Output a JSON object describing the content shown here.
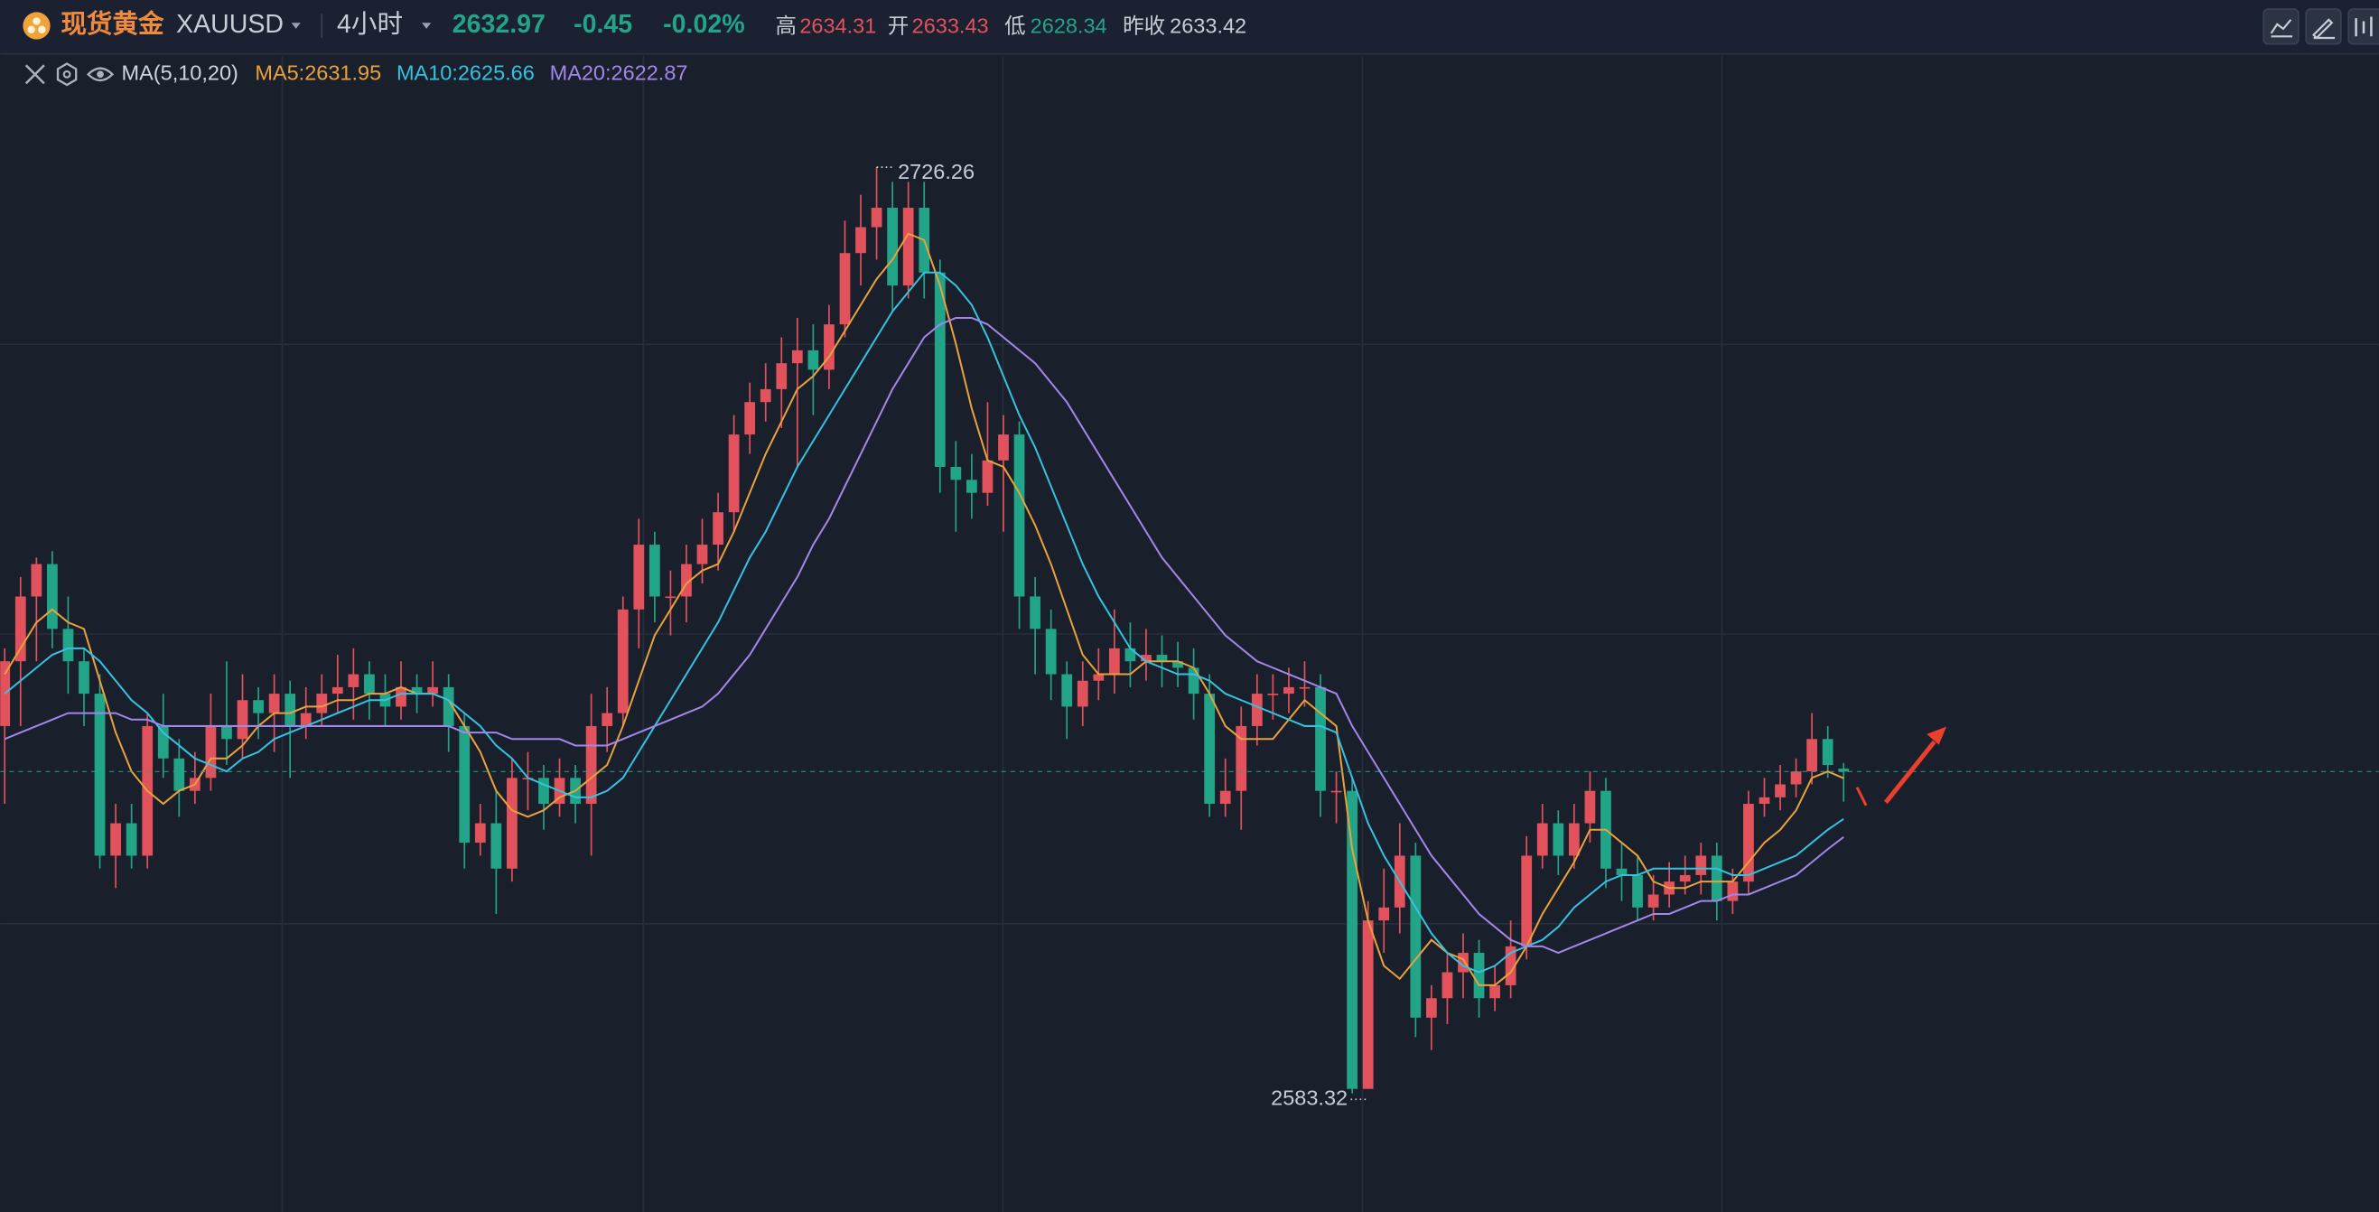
{
  "header": {
    "name": "现货黄金",
    "symbol": "XAUUSD",
    "interval": "4小时",
    "price": 2632.97,
    "change": -0.45,
    "change_pct": "-0.02%",
    "stats": [
      {
        "label": "高",
        "value": 2634.31
      },
      {
        "label": "开",
        "value": 2633.43
      },
      {
        "label": "低",
        "value": 2628.34
      },
      {
        "label": "昨收",
        "value": 2633.42
      }
    ]
  },
  "indicator": {
    "label": "MA(5,10,20)"
  },
  "chart_data": {
    "type": "candlestick",
    "ylim": [
      2565,
      2743.4
    ],
    "colors": {
      "up": "#e2525c",
      "down": "#22a489"
    },
    "annotations": {
      "high": 2726.26,
      "low": 2583.32
    },
    "candles": [
      [
        2640,
        2652,
        2628,
        2650
      ],
      [
        2650,
        2663,
        2640,
        2660
      ],
      [
        2660,
        2666,
        2650,
        2665
      ],
      [
        2665,
        2667,
        2652,
        2655
      ],
      [
        2655,
        2660,
        2645,
        2650
      ],
      [
        2650,
        2652,
        2640,
        2645
      ],
      [
        2645,
        2648,
        2618,
        2620
      ],
      [
        2620,
        2628,
        2615,
        2625
      ],
      [
        2625,
        2628,
        2618,
        2620
      ],
      [
        2620,
        2642,
        2618,
        2640
      ],
      [
        2640,
        2645,
        2632,
        2635
      ],
      [
        2635,
        2638,
        2626,
        2630
      ],
      [
        2630,
        2636,
        2628,
        2632
      ],
      [
        2632,
        2645,
        2630,
        2640
      ],
      [
        2640,
        2650,
        2634,
        2638
      ],
      [
        2638,
        2648,
        2635,
        2644
      ],
      [
        2644,
        2646,
        2638,
        2642
      ],
      [
        2642,
        2648,
        2636,
        2645
      ],
      [
        2645,
        2647,
        2632,
        2640
      ],
      [
        2640,
        2646,
        2638,
        2642
      ],
      [
        2642,
        2648,
        2640,
        2645
      ],
      [
        2645,
        2651,
        2642,
        2646
      ],
      [
        2646,
        2652,
        2641,
        2648
      ],
      [
        2648,
        2650,
        2641,
        2645
      ],
      [
        2645,
        2648,
        2640,
        2643
      ],
      [
        2643,
        2650,
        2641,
        2646
      ],
      [
        2646,
        2648,
        2642,
        2645
      ],
      [
        2645,
        2650,
        2643,
        2646
      ],
      [
        2646,
        2648,
        2636,
        2640
      ],
      [
        2640,
        2642,
        2618,
        2622
      ],
      [
        2622,
        2628,
        2620,
        2625
      ],
      [
        2625,
        2630,
        2611,
        2618
      ],
      [
        2618,
        2635,
        2616,
        2632
      ],
      [
        2632,
        2636,
        2627,
        2632
      ],
      [
        2632,
        2634,
        2624,
        2628
      ],
      [
        2628,
        2635,
        2626,
        2632
      ],
      [
        2632,
        2634,
        2625,
        2628
      ],
      [
        2628,
        2645,
        2620,
        2640
      ],
      [
        2640,
        2646,
        2636,
        2642
      ],
      [
        2642,
        2660,
        2640,
        2658
      ],
      [
        2658,
        2672,
        2652,
        2668
      ],
      [
        2668,
        2670,
        2656,
        2660
      ],
      [
        2660,
        2664,
        2654,
        2660
      ],
      [
        2660,
        2668,
        2656,
        2665
      ],
      [
        2665,
        2672,
        2662,
        2668
      ],
      [
        2668,
        2676,
        2664,
        2673
      ],
      [
        2673,
        2688,
        2670,
        2685
      ],
      [
        2685,
        2693,
        2682,
        2690
      ],
      [
        2690,
        2696,
        2687,
        2692
      ],
      [
        2692,
        2700,
        2686,
        2696
      ],
      [
        2696,
        2703,
        2680,
        2698
      ],
      [
        2698,
        2702,
        2688,
        2695
      ],
      [
        2695,
        2705,
        2692,
        2702
      ],
      [
        2702,
        2718,
        2700,
        2713
      ],
      [
        2713,
        2722,
        2708,
        2717
      ],
      [
        2717,
        2726.26,
        2712,
        2720
      ],
      [
        2720,
        2724,
        2704,
        2708
      ],
      [
        2708,
        2724,
        2706,
        2720
      ],
      [
        2720,
        2724,
        2706,
        2710
      ],
      [
        2710,
        2712,
        2676,
        2680
      ],
      [
        2680,
        2684,
        2670,
        2678
      ],
      [
        2678,
        2682,
        2672,
        2676
      ],
      [
        2676,
        2690,
        2674,
        2681
      ],
      [
        2681,
        2688,
        2670,
        2685
      ],
      [
        2685,
        2687,
        2655,
        2660
      ],
      [
        2660,
        2663,
        2648,
        2655
      ],
      [
        2655,
        2658,
        2644,
        2648
      ],
      [
        2648,
        2650,
        2638,
        2643
      ],
      [
        2643,
        2650,
        2640,
        2647
      ],
      [
        2647,
        2652,
        2644,
        2648
      ],
      [
        2648,
        2658,
        2645,
        2652
      ],
      [
        2652,
        2656,
        2646,
        2650
      ],
      [
        2650,
        2655,
        2647,
        2651
      ],
      [
        2651,
        2654,
        2646,
        2650
      ],
      [
        2650,
        2653,
        2646,
        2649
      ],
      [
        2649,
        2652,
        2641,
        2645
      ],
      [
        2645,
        2648,
        2626,
        2628
      ],
      [
        2628,
        2635,
        2626,
        2630
      ],
      [
        2630,
        2643,
        2624,
        2640
      ],
      [
        2640,
        2648,
        2637,
        2645
      ],
      [
        2645,
        2648,
        2641,
        2645
      ],
      [
        2645,
        2649,
        2642,
        2646
      ],
      [
        2646,
        2650,
        2643,
        2646
      ],
      [
        2646,
        2648,
        2626,
        2630
      ],
      [
        2630,
        2633,
        2625,
        2630
      ],
      [
        2630,
        2632,
        2583.32,
        2584
      ],
      [
        2584,
        2613,
        2584,
        2610
      ],
      [
        2610,
        2618,
        2605,
        2612
      ],
      [
        2612,
        2625,
        2608,
        2620
      ],
      [
        2620,
        2622,
        2592,
        2595
      ],
      [
        2595,
        2600,
        2590,
        2598
      ],
      [
        2598,
        2605,
        2594,
        2602
      ],
      [
        2602,
        2608,
        2598,
        2605
      ],
      [
        2605,
        2607,
        2595,
        2598
      ],
      [
        2598,
        2603,
        2596,
        2600
      ],
      [
        2600,
        2610,
        2598,
        2606
      ],
      [
        2606,
        2623,
        2604,
        2620
      ],
      [
        2620,
        2628,
        2618,
        2625
      ],
      [
        2625,
        2627,
        2617,
        2620
      ],
      [
        2620,
        2628,
        2618,
        2625
      ],
      [
        2625,
        2633,
        2622,
        2630
      ],
      [
        2630,
        2632,
        2615,
        2618
      ],
      [
        2618,
        2622,
        2613,
        2617
      ],
      [
        2617,
        2620,
        2610,
        2612
      ],
      [
        2612,
        2617,
        2610,
        2614
      ],
      [
        2614,
        2619,
        2612,
        2616
      ],
      [
        2616,
        2620,
        2614,
        2617
      ],
      [
        2617,
        2622,
        2614,
        2620
      ],
      [
        2620,
        2622,
        2610,
        2613
      ],
      [
        2613,
        2618,
        2611,
        2616
      ],
      [
        2616,
        2630,
        2614,
        2628
      ],
      [
        2628,
        2632,
        2626,
        2629
      ],
      [
        2629,
        2634,
        2627,
        2631
      ],
      [
        2631,
        2635,
        2629,
        2633
      ],
      [
        2633,
        2642,
        2631,
        2638
      ],
      [
        2638,
        2640,
        2632,
        2634
      ],
      [
        2633.43,
        2634.31,
        2628.34,
        2632.97
      ]
    ],
    "series": [
      {
        "label": "MA5:2631.95",
        "color": "#e9a23b",
        "values": [
          2648,
          2652,
          2656,
          2658,
          2656,
          2655,
          2647,
          2639,
          2633,
          2630,
          2628,
          2630,
          2631,
          2635,
          2635,
          2637,
          2640,
          2642,
          2642,
          2643,
          2643,
          2644,
          2644,
          2645,
          2645,
          2646,
          2645,
          2645,
          2644,
          2640,
          2636,
          2630,
          2627,
          2626,
          2627,
          2629,
          2630,
          2632,
          2634,
          2640,
          2647,
          2654,
          2658,
          2662,
          2664,
          2665,
          2670,
          2676,
          2682,
          2687,
          2692,
          2694,
          2697,
          2701,
          2705,
          2709,
          2712,
          2716,
          2715,
          2708,
          2699,
          2689,
          2681,
          2680,
          2676,
          2671,
          2665,
          2658,
          2651,
          2648,
          2648,
          2648,
          2650,
          2650,
          2650,
          2649,
          2645,
          2640,
          2638,
          2638,
          2638,
          2641,
          2644,
          2642,
          2640,
          2621,
          2610,
          2603,
          2601,
          2604,
          2607,
          2605,
          2604,
          2600,
          2600,
          2602,
          2606,
          2611,
          2615,
          2619,
          2624,
          2624,
          2622,
          2620,
          2616,
          2615,
          2615,
          2616,
          2616,
          2616,
          2619,
          2622,
          2624,
          2627,
          2632,
          2633,
          2631.95
        ]
      },
      {
        "label": "MA10:2625.66",
        "color": "#35c2e0",
        "values": [
          2645,
          2647,
          2649,
          2651,
          2652,
          2652,
          2650,
          2647,
          2644,
          2642,
          2639,
          2637,
          2635,
          2634,
          2633,
          2635,
          2636,
          2638,
          2639,
          2640,
          2641,
          2642,
          2643,
          2644,
          2644,
          2645,
          2645,
          2645,
          2644,
          2642,
          2640,
          2637,
          2635,
          2632,
          2631,
          2630,
          2629,
          2629,
          2630,
          2632,
          2636,
          2640,
          2644,
          2648,
          2652,
          2656,
          2661,
          2666,
          2670,
          2675,
          2680,
          2684,
          2688,
          2692,
          2696,
          2700,
          2704,
          2707,
          2710,
          2710,
          2708,
          2705,
          2700,
          2694,
          2688,
          2683,
          2677,
          2671,
          2665,
          2660,
          2656,
          2652,
          2650,
          2649,
          2648,
          2648,
          2647,
          2645,
          2644,
          2643,
          2642,
          2641,
          2640,
          2640,
          2639,
          2632,
          2625,
          2620,
          2616,
          2612,
          2608,
          2605,
          2603,
          2602,
          2603,
          2605,
          2606,
          2607,
          2609,
          2612,
          2614,
          2616,
          2617,
          2617,
          2618,
          2618,
          2618,
          2618,
          2618,
          2617,
          2617,
          2618,
          2619,
          2620,
          2622,
          2624,
          2625.66
        ]
      },
      {
        "label": "MA20:2622.87",
        "color": "#a287ea",
        "values": [
          2638,
          2639,
          2640,
          2641,
          2642,
          2642,
          2642,
          2642,
          2641,
          2641,
          2640,
          2640,
          2640,
          2640,
          2640,
          2640,
          2640,
          2640,
          2640,
          2640,
          2640,
          2640,
          2640,
          2640,
          2640,
          2640,
          2640,
          2640,
          2640,
          2639,
          2639,
          2639,
          2638,
          2638,
          2638,
          2638,
          2637,
          2637,
          2637,
          2638,
          2639,
          2640,
          2641,
          2642,
          2643,
          2645,
          2648,
          2651,
          2655,
          2659,
          2663,
          2668,
          2672,
          2677,
          2682,
          2687,
          2692,
          2696,
          2700,
          2702,
          2703,
          2703,
          2702,
          2700,
          2698,
          2696,
          2693,
          2690,
          2686,
          2682,
          2678,
          2674,
          2670,
          2666,
          2663,
          2660,
          2657,
          2654,
          2652,
          2650,
          2649,
          2648,
          2647,
          2646,
          2645,
          2640,
          2636,
          2632,
          2628,
          2624,
          2620,
          2617,
          2614,
          2611,
          2609,
          2607,
          2606,
          2606,
          2605,
          2606,
          2607,
          2608,
          2609,
          2610,
          2611,
          2611,
          2612,
          2613,
          2613,
          2614,
          2614,
          2615,
          2616,
          2617,
          2619,
          2621,
          2622.87
        ]
      }
    ]
  }
}
